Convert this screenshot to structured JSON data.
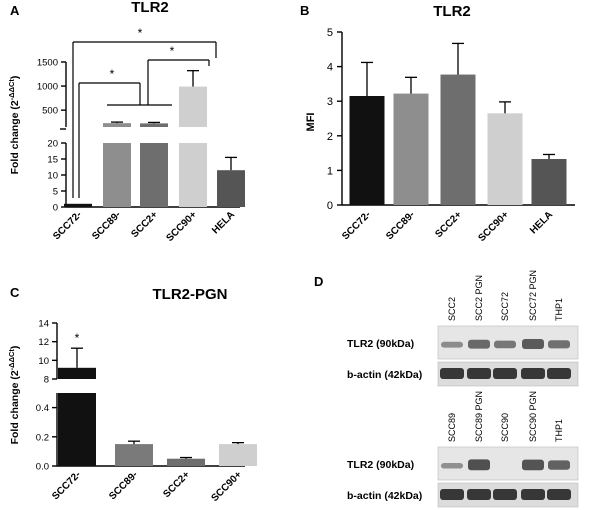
{
  "colors": {
    "bar_black": "#111111",
    "bar_grey1": "#8e8e8e",
    "bar_grey2": "#6e6e6e",
    "bar_light": "#cfcfcf",
    "bar_dark": "#555555",
    "bar_mid": "#7a7a7a"
  },
  "chart_data": [
    {
      "panel": "A",
      "type": "bar",
      "title": "TLR2",
      "ylabel": "Fold change (2-ΔΔCt)",
      "ylabel_main": "Fold change (2",
      "ylabel_sup": "-ΔΔCt",
      "ylabel_close": ")",
      "axis_break": true,
      "segments": [
        [
          0,
          20
        ],
        [
          150,
          1500
        ]
      ],
      "yticks_lower": [
        "0",
        "5",
        "10",
        "15",
        "20"
      ],
      "yticks_upper": [
        "500",
        "1000",
        "1500"
      ],
      "categories": [
        "SCC72-",
        "SCC89-",
        "SCC2+",
        "SCC90+",
        "HELA"
      ],
      "values": [
        1,
        230,
        225,
        990,
        11.5
      ],
      "errors": [
        0,
        22,
        20,
        330,
        4
      ],
      "significance": [
        {
          "from": "SCC72-",
          "to": "SCC89-/SCC2+",
          "label": "*"
        },
        {
          "from": "SCC2+",
          "to": "SCC90+",
          "label": "*"
        },
        {
          "from": "SCC72-",
          "to": "SCC90+",
          "label": "*"
        }
      ]
    },
    {
      "panel": "B",
      "type": "bar",
      "title": "TLR2",
      "ylabel": "MFI",
      "ylim": [
        0,
        5
      ],
      "yticks": [
        "0",
        "1",
        "2",
        "3",
        "4",
        "5"
      ],
      "categories": [
        "SCC72-",
        "SCC89-",
        "SCC2+",
        "SCC90+",
        "HELA"
      ],
      "values": [
        3.15,
        3.22,
        3.77,
        2.65,
        1.33
      ],
      "errors": [
        0.97,
        0.47,
        0.9,
        0.33,
        0.13
      ]
    },
    {
      "panel": "C",
      "type": "bar",
      "title": "TLR2-PGN",
      "ylabel": "Fold change (2-ΔΔCt)",
      "ylabel_main": "Fold change (2",
      "ylabel_sup": "-ΔΔCt",
      "ylabel_close": ")",
      "axis_break": true,
      "segments": [
        [
          0,
          0.5
        ],
        [
          8,
          14
        ]
      ],
      "yticks_lower": [
        "0.0",
        "0.2",
        "0.4"
      ],
      "yticks_upper": [
        "8",
        "10",
        "12",
        "14"
      ],
      "categories": [
        "SCC72-",
        "SCC89-",
        "SCC2+",
        "SCC90+"
      ],
      "values": [
        9.2,
        0.15,
        0.05,
        0.15
      ],
      "errors": [
        2.1,
        0.02,
        0.008,
        0.01
      ],
      "significance": [
        {
          "from": "SCC72-",
          "label": "*"
        }
      ]
    }
  ],
  "panel_d": {
    "letter": "D",
    "top": {
      "lanes": [
        "SCC2",
        "SCC2 PGN",
        "SCC72",
        "SCC72 PGN",
        "THP1"
      ],
      "row_labels": [
        "TLR2 (90kDa)",
        "b-actin (42kDa)"
      ]
    },
    "bottom": {
      "lanes": [
        "SCC89",
        "SCC89 PGN",
        "SCC90",
        "SCC90 PGN",
        "THP1"
      ],
      "row_labels": [
        "TLR2 (90kDa)",
        "b-actin (42kDa)"
      ]
    }
  }
}
